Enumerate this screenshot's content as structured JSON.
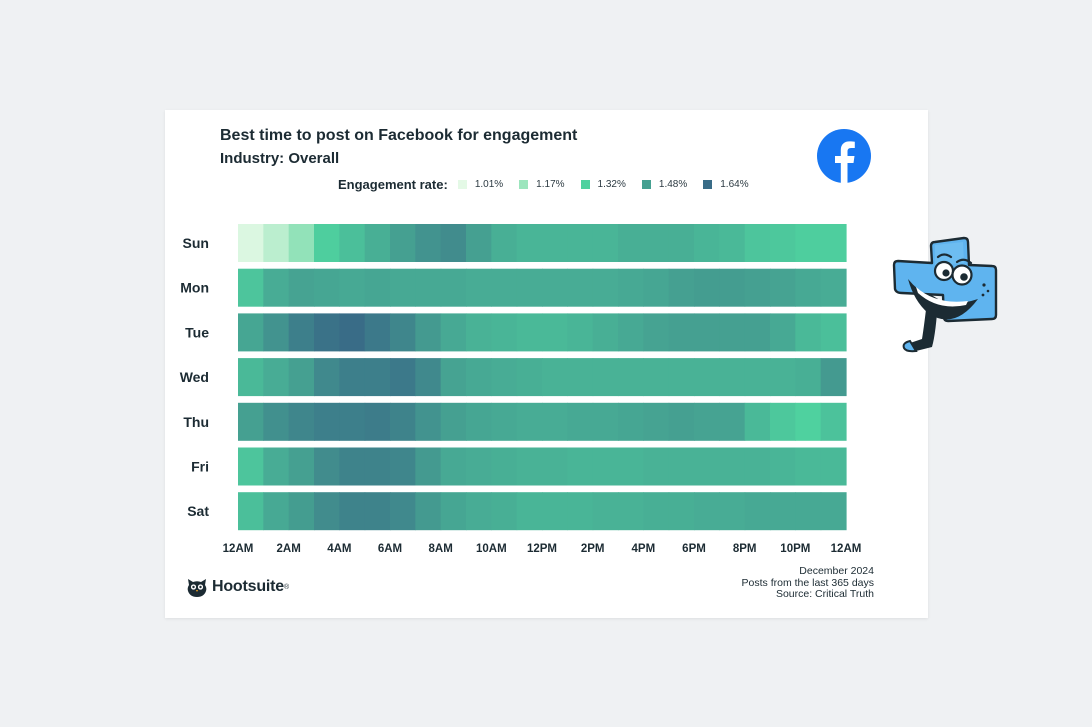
{
  "card": {
    "title": "Best time to post on Facebook for engagement",
    "subtitle": "Industry: Overall",
    "logo_icon": "facebook-logo-icon",
    "brand": {
      "name": "Hootsuite",
      "icon": "hootsuite-owl-icon",
      "mark": "®"
    },
    "footer": {
      "date": "December 2024",
      "note": "Posts from the last 365 days",
      "source": "Source: Critical Truth"
    },
    "mascot_icon": "hootsuite-mascot-icon"
  },
  "colors": {
    "facebook_blue": "#1877f2",
    "dark_text": "#1c2b33"
  },
  "chart_data": {
    "type": "heatmap",
    "title": "Best time to post on Facebook for engagement",
    "subtitle": "Industry: Overall",
    "legend_title": "Engagement rate:",
    "legend": [
      {
        "label": "1.01%",
        "value": 1.01,
        "color": "#e4f9e6"
      },
      {
        "label": "1.17%",
        "value": 1.17,
        "color": "#9ce5bd"
      },
      {
        "label": "1.32%",
        "value": 1.32,
        "color": "#4fd19f"
      },
      {
        "label": "1.48%",
        "value": 1.48,
        "color": "#45a091"
      },
      {
        "label": "1.64%",
        "value": 1.64,
        "color": "#396c87"
      }
    ],
    "y_categories": [
      "Sun",
      "Mon",
      "Tue",
      "Wed",
      "Thu",
      "Fri",
      "Sat"
    ],
    "x_tick_labels": [
      "12AM",
      "2AM",
      "4AM",
      "6AM",
      "8AM",
      "10AM",
      "12PM",
      "2PM",
      "4PM",
      "6PM",
      "8PM",
      "10PM",
      "12AM"
    ],
    "x_unit": "hour of day",
    "values": [
      [
        1.03,
        1.1,
        1.19,
        1.33,
        1.38,
        1.43,
        1.48,
        1.52,
        1.54,
        1.48,
        1.43,
        1.41,
        1.41,
        1.41,
        1.41,
        1.43,
        1.43,
        1.43,
        1.41,
        1.4,
        1.36,
        1.35,
        1.33,
        1.33
      ],
      [
        1.36,
        1.44,
        1.47,
        1.46,
        1.45,
        1.46,
        1.45,
        1.45,
        1.45,
        1.44,
        1.44,
        1.44,
        1.44,
        1.44,
        1.44,
        1.45,
        1.46,
        1.48,
        1.49,
        1.49,
        1.48,
        1.47,
        1.45,
        1.44
      ],
      [
        1.46,
        1.52,
        1.58,
        1.62,
        1.64,
        1.6,
        1.56,
        1.5,
        1.45,
        1.42,
        1.41,
        1.4,
        1.4,
        1.41,
        1.43,
        1.45,
        1.47,
        1.48,
        1.48,
        1.48,
        1.48,
        1.45,
        1.4,
        1.38
      ],
      [
        1.4,
        1.44,
        1.48,
        1.55,
        1.58,
        1.58,
        1.6,
        1.55,
        1.47,
        1.45,
        1.44,
        1.43,
        1.42,
        1.42,
        1.42,
        1.42,
        1.42,
        1.42,
        1.42,
        1.42,
        1.42,
        1.42,
        1.43,
        1.5
      ],
      [
        1.48,
        1.53,
        1.56,
        1.58,
        1.58,
        1.59,
        1.57,
        1.52,
        1.48,
        1.46,
        1.45,
        1.44,
        1.44,
        1.45,
        1.45,
        1.46,
        1.47,
        1.48,
        1.47,
        1.47,
        1.4,
        1.35,
        1.32,
        1.37
      ],
      [
        1.36,
        1.44,
        1.48,
        1.54,
        1.57,
        1.57,
        1.56,
        1.5,
        1.45,
        1.44,
        1.43,
        1.42,
        1.42,
        1.41,
        1.41,
        1.41,
        1.42,
        1.42,
        1.42,
        1.42,
        1.42,
        1.41,
        1.4,
        1.4
      ],
      [
        1.38,
        1.45,
        1.49,
        1.54,
        1.57,
        1.57,
        1.55,
        1.5,
        1.46,
        1.44,
        1.43,
        1.41,
        1.41,
        1.41,
        1.42,
        1.42,
        1.43,
        1.43,
        1.44,
        1.44,
        1.45,
        1.45,
        1.45,
        1.45
      ]
    ]
  }
}
